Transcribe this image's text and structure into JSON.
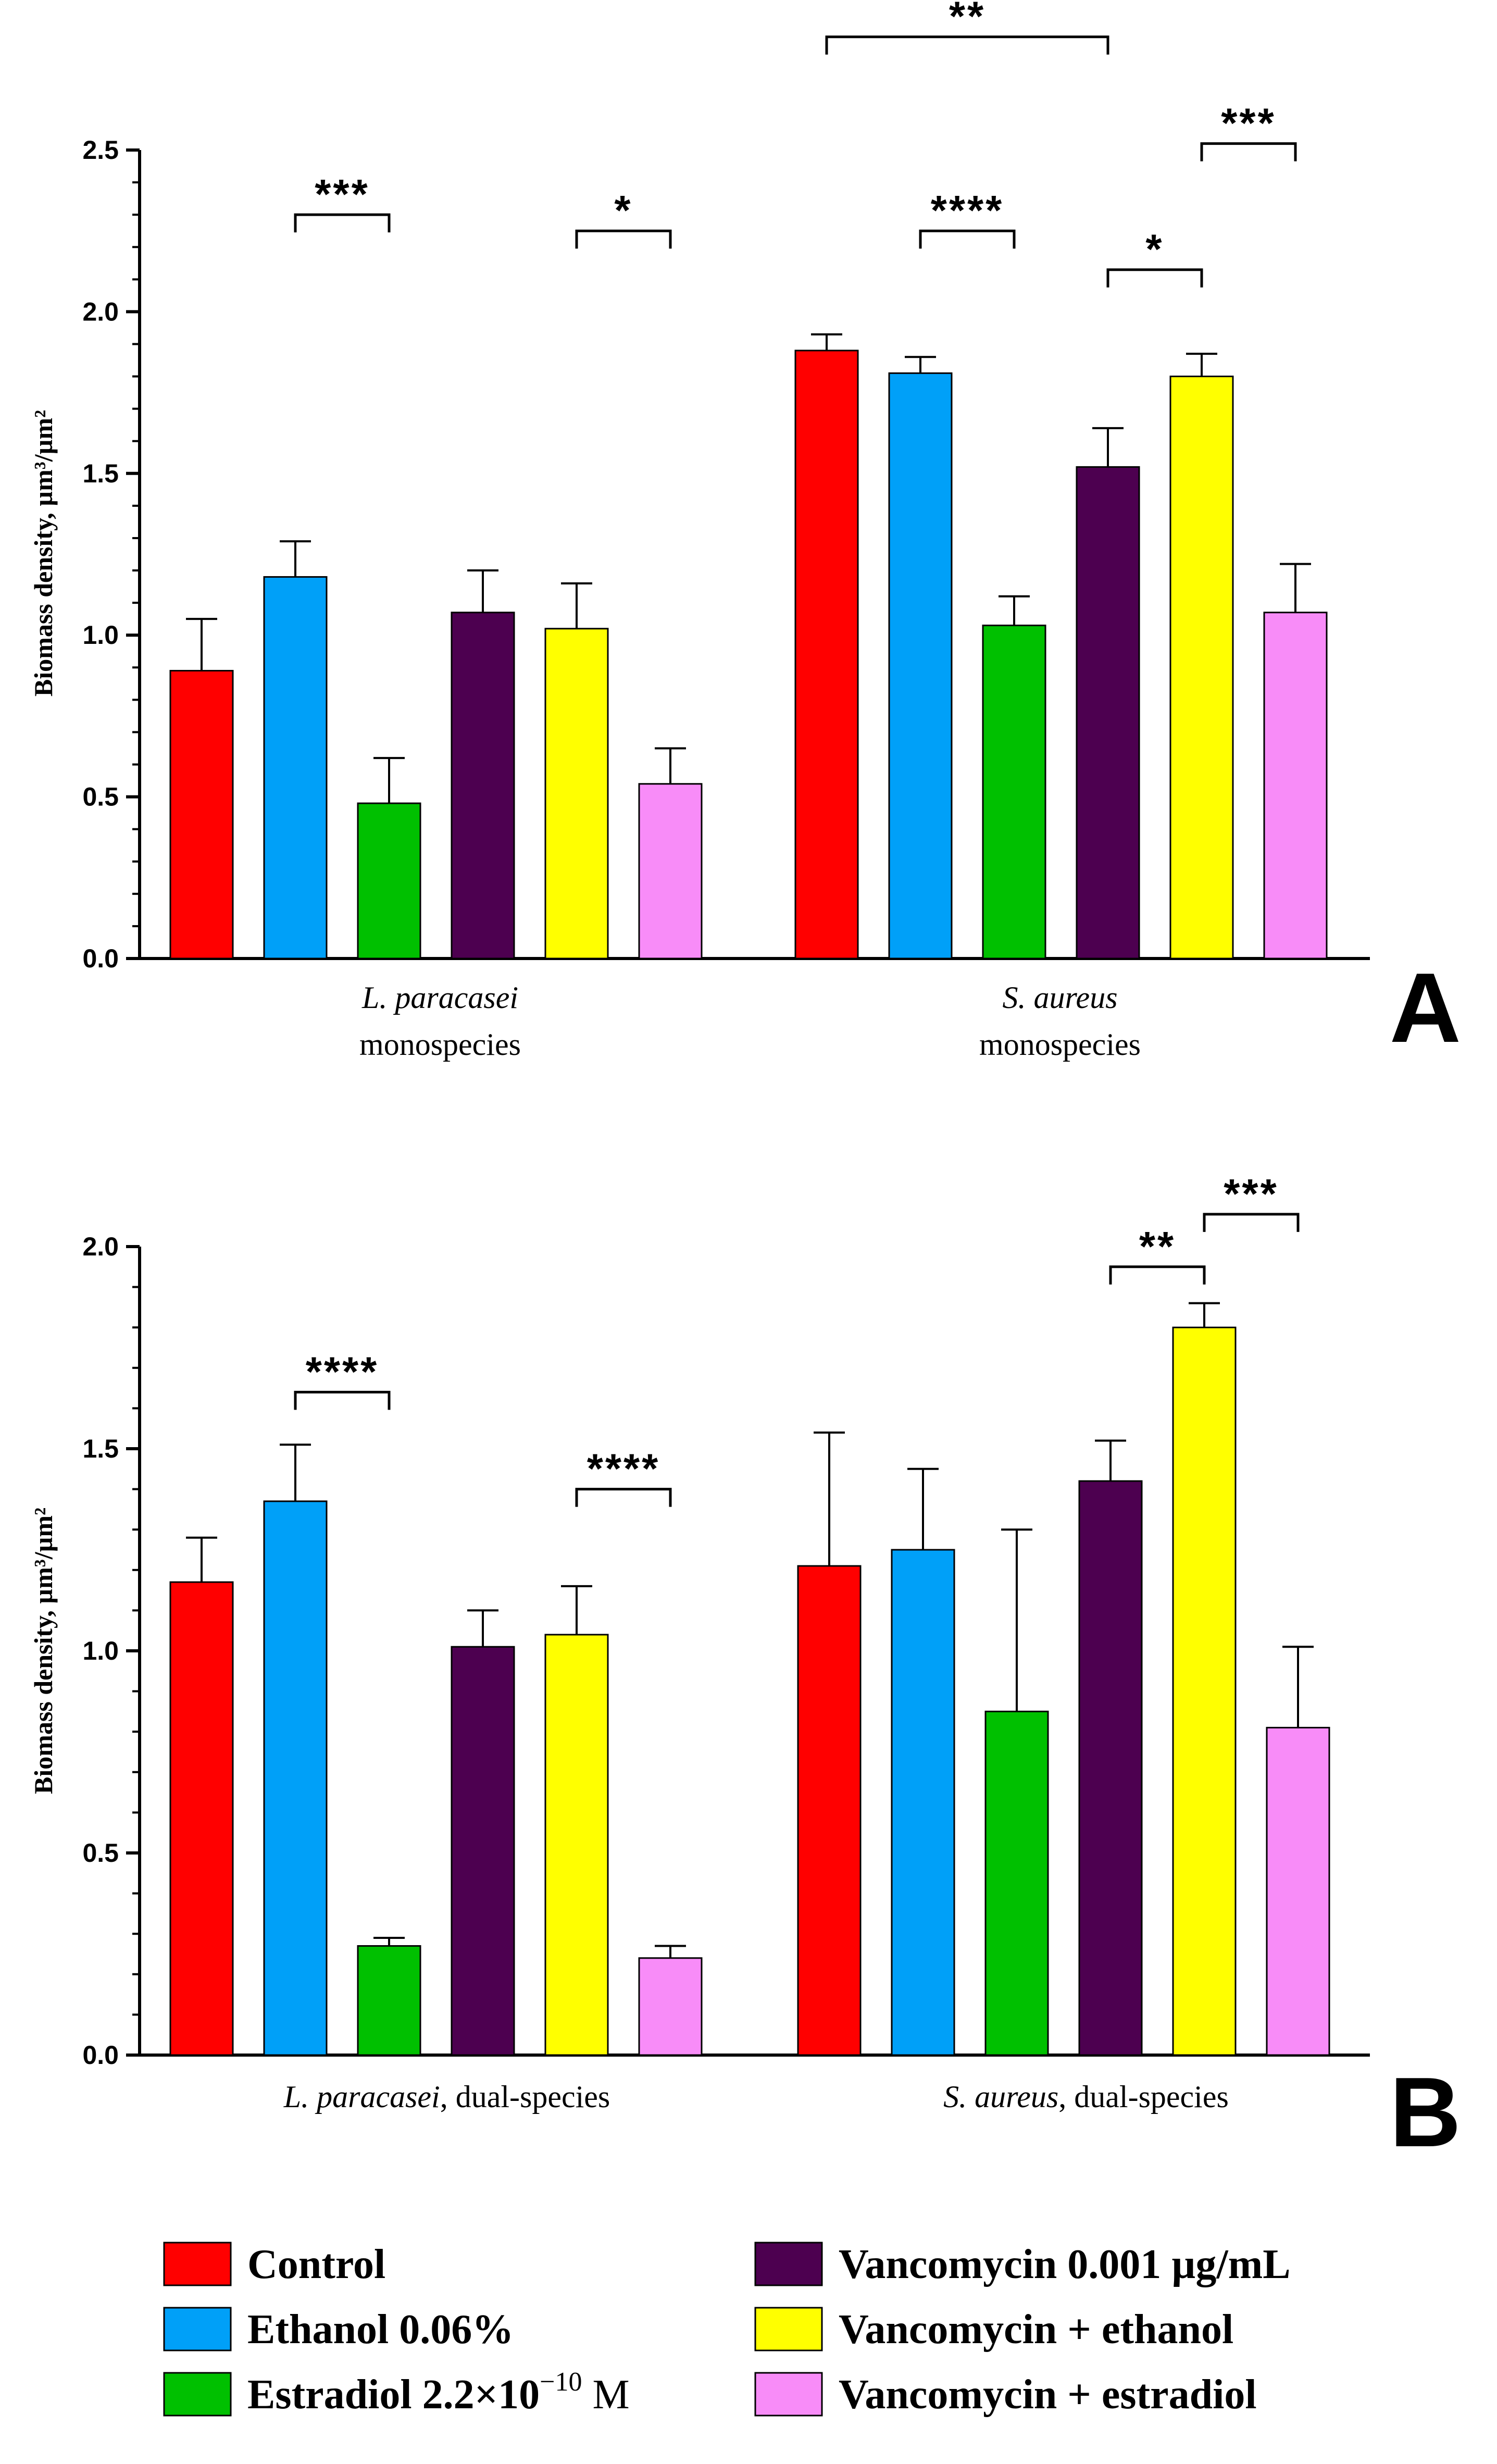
{
  "chart_data": [
    {
      "type": "bar",
      "panel": "A",
      "ylabel": "Biomass density, µm³/µm²",
      "ylim": [
        0,
        2.5
      ],
      "yticks": [
        "0.0",
        "0.5",
        "1.0",
        "1.5",
        "2.0",
        "2.5"
      ],
      "groups": [
        {
          "label_italic": "L. paracasei",
          "label_rest": "",
          "label_line2": "monospecies",
          "values": [
            0.89,
            1.18,
            0.48,
            1.07,
            1.02,
            0.54
          ],
          "errors": [
            0.16,
            0.11,
            0.14,
            0.13,
            0.14,
            0.11
          ]
        },
        {
          "label_italic": "S. aureus",
          "label_rest": "",
          "label_line2": "monospecies",
          "values": [
            1.88,
            1.81,
            1.03,
            1.52,
            1.8,
            1.07
          ],
          "errors": [
            0.05,
            0.05,
            0.09,
            0.12,
            0.07,
            0.15
          ]
        }
      ],
      "significance": [
        {
          "group": 0,
          "from": 1,
          "to": 2,
          "y": 2.3,
          "label": "***"
        },
        {
          "group": 0,
          "from": 4,
          "to": 5,
          "y": 2.25,
          "label": "*"
        },
        {
          "group": 1,
          "from": 0,
          "to": 3,
          "y": 2.85,
          "label": "**"
        },
        {
          "group": 1,
          "from": 1,
          "to": 2,
          "y": 2.25,
          "label": "****"
        },
        {
          "group": 1,
          "from": 3,
          "to": 4,
          "y": 2.13,
          "label": "*"
        },
        {
          "group": 1,
          "from": 4,
          "to": 5,
          "y": 2.52,
          "label": "***"
        }
      ]
    },
    {
      "type": "bar",
      "panel": "B",
      "ylabel": "Biomass density, µm³/µm²",
      "ylim": [
        0,
        2.0
      ],
      "yticks": [
        "0.0",
        "0.5",
        "1.0",
        "1.5",
        "2.0"
      ],
      "groups": [
        {
          "label_italic": "L. paracasei",
          "label_rest": ", dual-species",
          "label_line2": "",
          "values": [
            1.17,
            1.37,
            0.27,
            1.01,
            1.04,
            0.24
          ],
          "errors": [
            0.11,
            0.14,
            0.02,
            0.09,
            0.12,
            0.03
          ]
        },
        {
          "label_italic": "S. aureus",
          "label_rest": ", dual-species",
          "label_line2": "",
          "values": [
            1.21,
            1.25,
            0.85,
            1.42,
            1.8,
            0.81
          ],
          "errors": [
            0.33,
            0.2,
            0.45,
            0.1,
            0.06,
            0.2
          ]
        }
      ],
      "significance": [
        {
          "group": 0,
          "from": 1,
          "to": 2,
          "y": 1.64,
          "label": "****"
        },
        {
          "group": 0,
          "from": 4,
          "to": 5,
          "y": 1.4,
          "label": "****"
        },
        {
          "group": 1,
          "from": 3,
          "to": 4,
          "y": 1.95,
          "label": "**"
        },
        {
          "group": 1,
          "from": 4,
          "to": 5,
          "y": 2.08,
          "label": "***"
        }
      ]
    }
  ],
  "series": [
    {
      "name": "Control",
      "color": "#ff0000"
    },
    {
      "name": "Ethanol 0.06%",
      "color": "#00a0f8"
    },
    {
      "name": "Estradiol 2.2×10⁻¹⁰ M",
      "color": "#00c000"
    },
    {
      "name": "Vancomycin 0.001 µg/mL",
      "color": "#4d0050"
    },
    {
      "name": "Vancomycin + ethanol",
      "color": "#ffff00"
    },
    {
      "name": "Vancomycin + estradiol",
      "color": "#f88cf8"
    }
  ],
  "legend": {
    "items": [
      {
        "label_main": "Control",
        "label_sup": "",
        "label_tail": ""
      },
      {
        "label_main": "Ethanol 0.06%",
        "label_sup": "",
        "label_tail": ""
      },
      {
        "label_main": "Estradiol 2.2×10",
        "label_sup": "−10",
        "label_tail": " M"
      },
      {
        "label_main": "Vancomycin 0.001 µg/mL",
        "label_sup": "",
        "label_tail": ""
      },
      {
        "label_main": "Vancomycin + ethanol",
        "label_sup": "",
        "label_tail": ""
      },
      {
        "label_main": "Vancomycin + estradiol",
        "label_sup": "",
        "label_tail": ""
      }
    ]
  }
}
